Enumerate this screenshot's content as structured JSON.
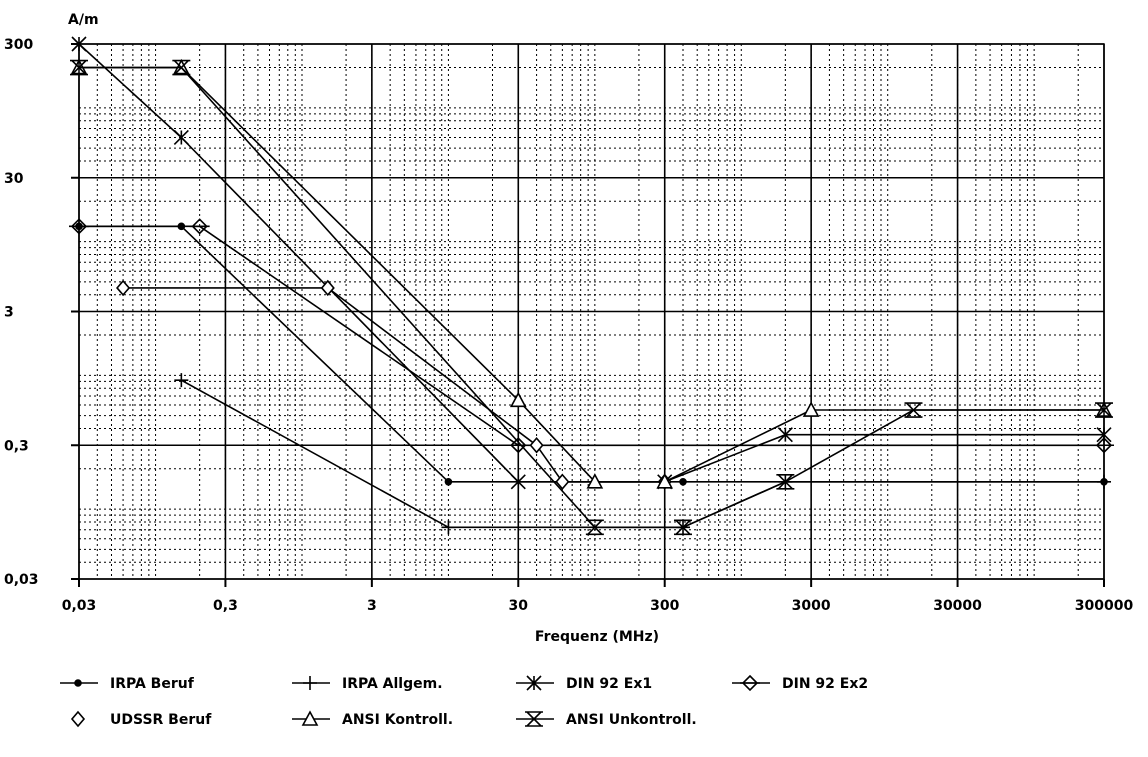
{
  "chart_data": {
    "type": "line",
    "title": "",
    "ylabel": "A/m",
    "xlabel": "Frequenz (MHz)",
    "xscale": "log",
    "yscale": "log",
    "xlim": [
      0.03,
      300000
    ],
    "ylim": [
      0.03,
      300
    ],
    "grid": true,
    "legend_position": "bottom",
    "x_ticks": [
      {
        "value": 0.03,
        "label": "0,03"
      },
      {
        "value": 0.3,
        "label": "0,3"
      },
      {
        "value": 3,
        "label": "3"
      },
      {
        "value": 30,
        "label": "30"
      },
      {
        "value": 300,
        "label": "300"
      },
      {
        "value": 3000,
        "label": "3000"
      },
      {
        "value": 30000,
        "label": "30000"
      },
      {
        "value": 300000,
        "label": "300000"
      }
    ],
    "y_ticks": [
      {
        "value": 0.03,
        "label": "0,03"
      },
      {
        "value": 0.3,
        "label": "0,3"
      },
      {
        "value": 3,
        "label": "3"
      },
      {
        "value": 30,
        "label": "30"
      },
      {
        "value": 300,
        "label": "300"
      }
    ],
    "series": [
      {
        "name": "IRPA Beruf",
        "marker": "dot",
        "points": [
          [
            0.03,
            13
          ],
          [
            0.15,
            13
          ],
          [
            10,
            0.16
          ],
          [
            400,
            0.16
          ],
          [
            300000,
            0.16
          ]
        ]
      },
      {
        "name": "IRPA Allgem.",
        "marker": "plus",
        "points": [
          [
            0.15,
            0.92
          ],
          [
            10,
            0.073
          ],
          [
            400,
            0.073
          ],
          [
            2000,
            0.16
          ],
          [
            300000,
            0.16
          ]
        ]
      },
      {
        "name": "DIN 92 Ex1",
        "marker": "asterisk",
        "points": [
          [
            0.03,
            300
          ],
          [
            0.15,
            60
          ],
          [
            30,
            0.16
          ],
          [
            300,
            0.16
          ],
          [
            2000,
            0.36
          ],
          [
            300000,
            0.36
          ]
        ]
      },
      {
        "name": "DIN 92 Ex2",
        "marker": "diamond-bar",
        "points": [
          [
            0.03,
            13
          ],
          [
            0.2,
            13
          ],
          [
            30,
            0.3
          ],
          [
            300000,
            0.3
          ]
        ]
      },
      {
        "name": "UDSSR Beruf",
        "marker": "diamond",
        "points": [
          [
            0.06,
            4.5
          ],
          [
            1.5,
            4.5
          ],
          [
            40,
            0.3
          ],
          [
            60,
            0.16
          ],
          [
            300,
            0.16
          ]
        ]
      },
      {
        "name": "ANSI Kontroll.",
        "marker": "triangle",
        "points": [
          [
            0.03,
            200
          ],
          [
            0.15,
            200
          ],
          [
            30,
            0.65
          ],
          [
            100,
            0.16
          ],
          [
            300,
            0.16
          ],
          [
            3000,
            0.55
          ],
          [
            300000,
            0.55
          ]
        ]
      },
      {
        "name": "ANSI Unkontroll.",
        "marker": "hourglass",
        "points": [
          [
            0.03,
            200
          ],
          [
            0.15,
            200
          ],
          [
            100,
            0.073
          ],
          [
            400,
            0.073
          ],
          [
            2000,
            0.16
          ],
          [
            15000,
            0.55
          ],
          [
            300000,
            0.55
          ]
        ]
      }
    ]
  }
}
